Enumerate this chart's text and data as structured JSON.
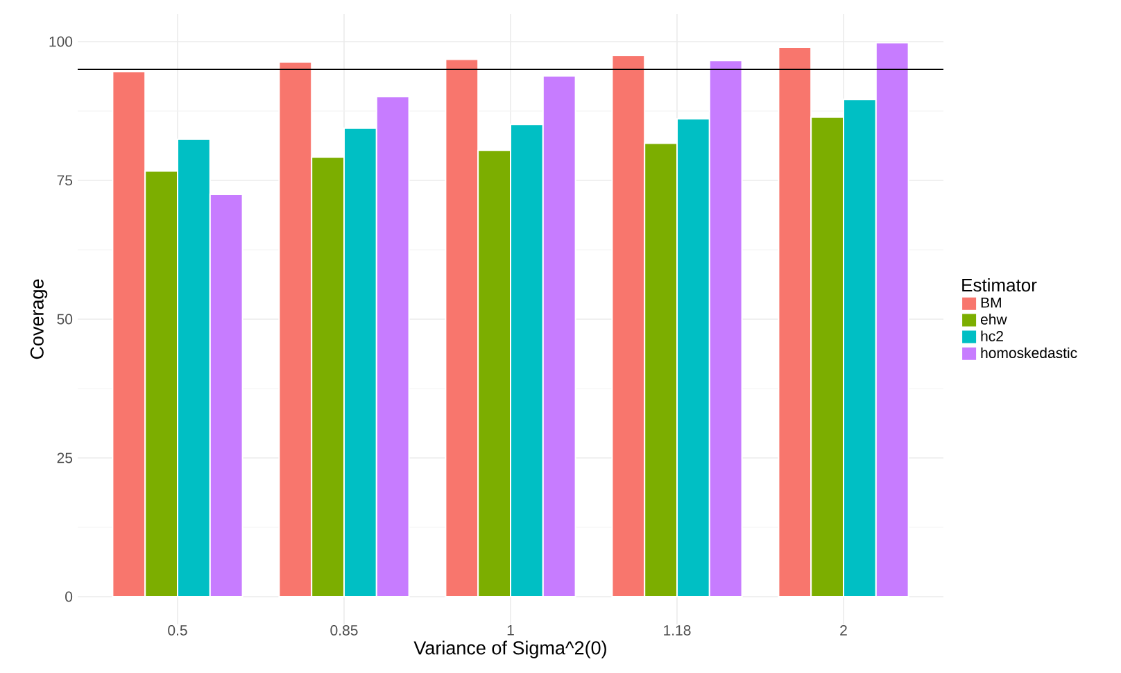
{
  "chart_data": {
    "type": "bar",
    "xlabel": "Variance of Sigma^2(0)",
    "ylabel": "Coverage",
    "legend_title": "Estimator",
    "categories": [
      "0.5",
      "0.85",
      "1",
      "1.18",
      "2"
    ],
    "series": [
      {
        "name": "BM",
        "color": "#f8766d",
        "values": [
          94.6,
          96.3,
          96.8,
          97.5,
          99.0
        ]
      },
      {
        "name": "ehw",
        "color": "#7cae00",
        "values": [
          76.7,
          79.2,
          80.4,
          81.7,
          86.4
        ]
      },
      {
        "name": "hc2",
        "color": "#00bfc4",
        "values": [
          82.4,
          84.4,
          85.1,
          86.1,
          89.6
        ]
      },
      {
        "name": "homoskedastic",
        "color": "#c77cff",
        "values": [
          72.5,
          90.1,
          93.8,
          96.6,
          99.8
        ]
      }
    ],
    "ylim": [
      -5,
      105
    ],
    "yticks": [
      0,
      25,
      50,
      75,
      100
    ],
    "grid": true,
    "legend": "right",
    "ref_lines": [
      {
        "axis": "y",
        "value": 95,
        "color": "#000000"
      }
    ]
  }
}
